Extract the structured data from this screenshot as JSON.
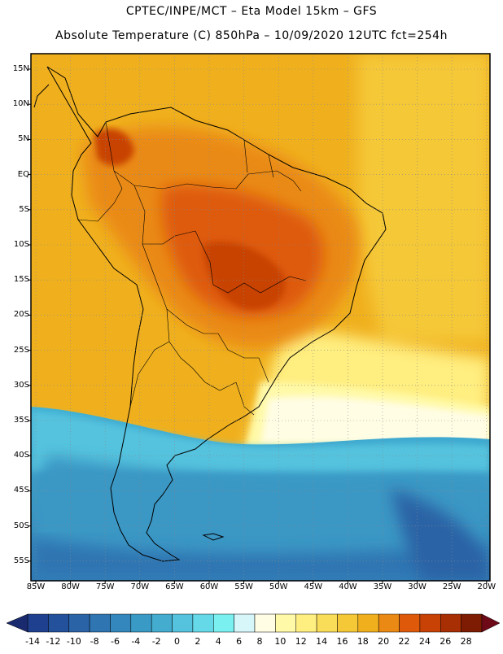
{
  "header": {
    "line1": "CPTEC/INPE/MCT –  Eta Model 15km – GFS",
    "line2": "Absolute Temperature (C) 850hPa – 10/09/2020 12UTC fct=254h"
  },
  "map": {
    "lat_labels": [
      "15N",
      "10N",
      "5N",
      "EQ",
      "5S",
      "10S",
      "15S",
      "20S",
      "25S",
      "30S",
      "35S",
      "40S",
      "45S",
      "50S",
      "55S"
    ],
    "lon_labels": [
      "85W",
      "80W",
      "75W",
      "70W",
      "65W",
      "60W",
      "55W",
      "50W",
      "45W",
      "40W",
      "35W",
      "30W",
      "25W",
      "20W"
    ]
  },
  "colorbar": {
    "labels": [
      "-14",
      "-12",
      "-10",
      "-8",
      "-6",
      "-4",
      "-2",
      "0",
      "2",
      "4",
      "6",
      "8",
      "10",
      "12",
      "14",
      "16",
      "18",
      "20",
      "22",
      "24",
      "26",
      "28"
    ],
    "colors": [
      "#1f3f8f",
      "#23519b",
      "#2a63a6",
      "#2e75b2",
      "#3387bd",
      "#3a9ac6",
      "#43accf",
      "#55c3de",
      "#66d9e8",
      "#7af0f0",
      "#d6f6fa",
      "#fffde4",
      "#fff9a8",
      "#ffee80",
      "#f9dc58",
      "#f5c838",
      "#f0b01e",
      "#ea8a14",
      "#de5a0a",
      "#c84206",
      "#a82e04",
      "#7d1c02"
    ],
    "low_color": "#1a2a6e",
    "high_color": "#6e0a18"
  }
}
